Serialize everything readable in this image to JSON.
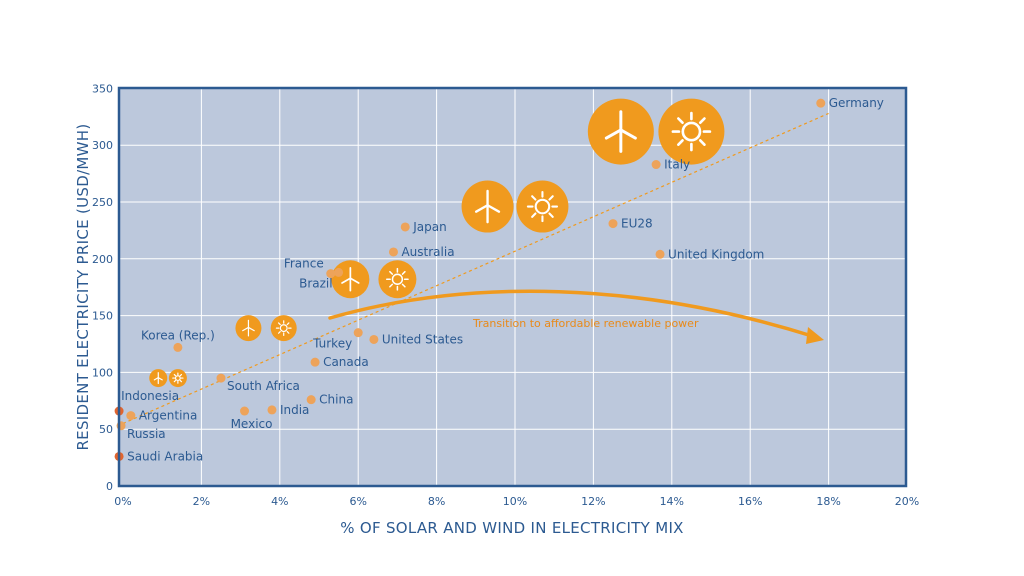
{
  "chart_data": {
    "type": "scatter",
    "xlabel": "% OF SOLAR AND WIND IN ELECTRICITY MIX",
    "ylabel": "RESIDENT ELECTRICITY PRICE (USD/MWH)",
    "xlim": [
      0,
      20
    ],
    "ylim": [
      0,
      350
    ],
    "x_ticks": [
      {
        "value": 0,
        "label": "0%"
      },
      {
        "value": 2,
        "label": "2%"
      },
      {
        "value": 4,
        "label": "4%"
      },
      {
        "value": 6,
        "label": "6%"
      },
      {
        "value": 8,
        "label": "8%"
      },
      {
        "value": 10,
        "label": "10%"
      },
      {
        "value": 12,
        "label": "12%"
      },
      {
        "value": 14,
        "label": "14%"
      },
      {
        "value": 16,
        "label": "16%"
      },
      {
        "value": 18,
        "label": "18%"
      },
      {
        "value": 20,
        "label": "20%"
      }
    ],
    "y_ticks": [
      {
        "value": 0,
        "label": "0"
      },
      {
        "value": 50,
        "label": "50"
      },
      {
        "value": 100,
        "label": "100"
      },
      {
        "value": 150,
        "label": "150"
      },
      {
        "value": 200,
        "label": "200"
      },
      {
        "value": 250,
        "label": "250"
      },
      {
        "value": 300,
        "label": "300"
      },
      {
        "value": 350,
        "label": "350"
      }
    ],
    "grid": true,
    "points": [
      {
        "label": "Germany",
        "x": 17.8,
        "y": 337,
        "label_side": "right"
      },
      {
        "label": "Italy",
        "x": 13.6,
        "y": 283,
        "label_side": "right"
      },
      {
        "label": "EU28",
        "x": 12.5,
        "y": 231,
        "label_side": "right"
      },
      {
        "label": "United Kingdom",
        "x": 13.7,
        "y": 204,
        "label_side": "right"
      },
      {
        "label": "Japan",
        "x": 7.2,
        "y": 228,
        "label_side": "right"
      },
      {
        "label": "Australia",
        "x": 6.9,
        "y": 206,
        "label_side": "right"
      },
      {
        "label": "France",
        "x": 5.3,
        "y": 187,
        "label_side": "left"
      },
      {
        "label": "Brazil",
        "x": 5.5,
        "y": 188,
        "label_side": "below-left"
      },
      {
        "label": "Turkey",
        "x": 6.0,
        "y": 135,
        "label_side": "below-left"
      },
      {
        "label": "United States",
        "x": 6.4,
        "y": 129,
        "label_side": "right"
      },
      {
        "label": "Canada",
        "x": 4.9,
        "y": 109,
        "label_side": "right"
      },
      {
        "label": "Korea (Rep.)",
        "x": 1.4,
        "y": 122,
        "label_side": "above"
      },
      {
        "label": "South Africa",
        "x": 2.5,
        "y": 95,
        "label_side": "below-right"
      },
      {
        "label": "China",
        "x": 4.8,
        "y": 76,
        "label_side": "right"
      },
      {
        "label": "India",
        "x": 3.8,
        "y": 67,
        "label_side": "right"
      },
      {
        "label": "Mexico",
        "x": 3.1,
        "y": 66,
        "label_side": "below"
      },
      {
        "label": "Indonesia",
        "x": -0.1,
        "y": 66,
        "label_side": "above-right"
      },
      {
        "label": "Argentina",
        "x": 0.2,
        "y": 62,
        "label_side": "right"
      },
      {
        "label": "Russia",
        "x": -0.05,
        "y": 53,
        "label_side": "below-right"
      },
      {
        "label": "Saudi Arabia",
        "x": -0.1,
        "y": 26,
        "label_side": "right"
      }
    ],
    "trendline": {
      "x1": 0,
      "y1": 55,
      "x2": 18,
      "y2": 328,
      "style": "dashed"
    },
    "annotation": {
      "text": "Transition to affordable renewable power",
      "arrow": "curved"
    },
    "icon_pairs": [
      {
        "x1": 0.9,
        "x2": 1.4,
        "y": 95,
        "size": "xs"
      },
      {
        "x1": 3.2,
        "x2": 4.1,
        "y": 139,
        "size": "s"
      },
      {
        "x1": 5.8,
        "x2": 7.0,
        "y": 182,
        "size": "m"
      },
      {
        "x1": 9.3,
        "x2": 10.7,
        "y": 246,
        "size": "l"
      },
      {
        "x1": 12.7,
        "x2": 14.5,
        "y": 312,
        "size": "xl"
      }
    ],
    "colors": {
      "plot_bg": "#bcc8dc",
      "frame": "#2c5a91",
      "text": "#2c5a91",
      "point": "#eda35a",
      "point_dark": "#e0642e",
      "accent": "#f09a1e",
      "grid": "#ffffff"
    },
    "icons": [
      "wind-turbine-icon",
      "sun-icon"
    ]
  }
}
